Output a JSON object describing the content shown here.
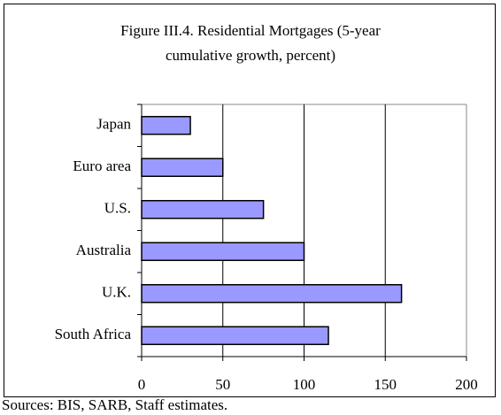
{
  "chart_data": {
    "type": "bar",
    "orientation": "horizontal",
    "title": [
      "Figure III.4. Residential Mortgages (5-year",
      "cumulative growth, percent)"
    ],
    "categories": [
      "Japan",
      "Euro area",
      "U.S.",
      "Australia",
      "U.K.",
      "South Africa"
    ],
    "values": [
      30,
      50,
      75,
      100,
      160,
      115
    ],
    "color": "#9999ff",
    "xlim": [
      0,
      200
    ],
    "xticks": [
      0,
      50,
      100,
      150,
      200
    ],
    "grid": true,
    "source": "Sources: BIS, SARB, Staff estimates."
  }
}
